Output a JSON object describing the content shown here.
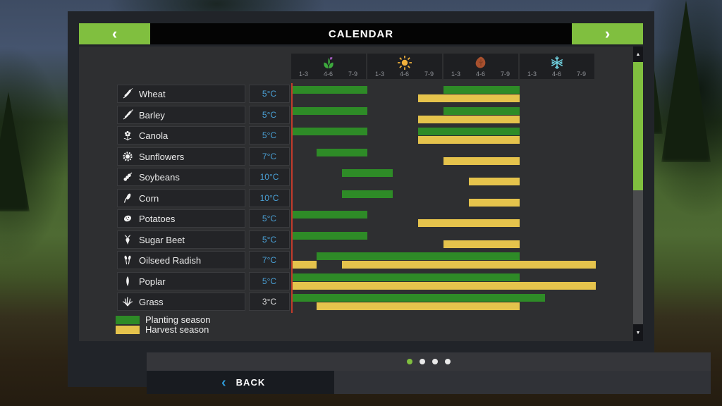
{
  "title": "CALENDAR",
  "nav": {
    "prev": "‹",
    "next": "›"
  },
  "seasons": [
    {
      "name": "spring",
      "icon": "spring-icon",
      "periods": [
        "1-3",
        "4-6",
        "7-9"
      ]
    },
    {
      "name": "summer",
      "icon": "summer-icon",
      "periods": [
        "1-3",
        "4-6",
        "7-9"
      ]
    },
    {
      "name": "autumn",
      "icon": "autumn-icon",
      "periods": [
        "1-3",
        "4-6",
        "7-9"
      ]
    },
    {
      "name": "winter",
      "icon": "winter-icon",
      "periods": [
        "1-3",
        "4-6",
        "7-9"
      ]
    }
  ],
  "crops": [
    {
      "name": "Wheat",
      "icon": "wheat-icon",
      "temp": "5°C",
      "temp_color": "#4aa0d5",
      "planting": [
        [
          0,
          3
        ],
        [
          6,
          9
        ]
      ],
      "harvest": [
        [
          5,
          9
        ]
      ]
    },
    {
      "name": "Barley",
      "icon": "barley-icon",
      "temp": "5°C",
      "temp_color": "#4aa0d5",
      "planting": [
        [
          0,
          3
        ],
        [
          6,
          9
        ]
      ],
      "harvest": [
        [
          5,
          9
        ]
      ]
    },
    {
      "name": "Canola",
      "icon": "canola-icon",
      "temp": "5°C",
      "temp_color": "#4aa0d5",
      "planting": [
        [
          0,
          3
        ],
        [
          5,
          9
        ]
      ],
      "harvest": [
        [
          5,
          9
        ]
      ]
    },
    {
      "name": "Sunflowers",
      "icon": "sunflowers-icon",
      "temp": "7°C",
      "temp_color": "#4aa0d5",
      "planting": [
        [
          1,
          3
        ]
      ],
      "harvest": [
        [
          6,
          9
        ]
      ]
    },
    {
      "name": "Soybeans",
      "icon": "soybeans-icon",
      "temp": "10°C",
      "temp_color": "#4aa0d5",
      "planting": [
        [
          2,
          4
        ]
      ],
      "harvest": [
        [
          7,
          9
        ]
      ]
    },
    {
      "name": "Corn",
      "icon": "corn-icon",
      "temp": "10°C",
      "temp_color": "#4aa0d5",
      "planting": [
        [
          2,
          4
        ]
      ],
      "harvest": [
        [
          7,
          9
        ]
      ]
    },
    {
      "name": "Potatoes",
      "icon": "potatoes-icon",
      "temp": "5°C",
      "temp_color": "#4aa0d5",
      "planting": [
        [
          0,
          3
        ]
      ],
      "harvest": [
        [
          5,
          9
        ]
      ]
    },
    {
      "name": "Sugar Beet",
      "icon": "sugar-beet-icon",
      "temp": "5°C",
      "temp_color": "#4aa0d5",
      "planting": [
        [
          0,
          3
        ]
      ],
      "harvest": [
        [
          6,
          9
        ]
      ]
    },
    {
      "name": "Oilseed Radish",
      "icon": "oilseed-radish-icon",
      "temp": "7°C",
      "temp_color": "#4aa0d5",
      "planting": [
        [
          1,
          9
        ]
      ],
      "harvest": [
        [
          0,
          1
        ],
        [
          2,
          12
        ]
      ]
    },
    {
      "name": "Poplar",
      "icon": "poplar-icon",
      "temp": "5°C",
      "temp_color": "#4aa0d5",
      "planting": [
        [
          0,
          9
        ]
      ],
      "harvest": [
        [
          0,
          12
        ]
      ]
    },
    {
      "name": "Grass",
      "icon": "grass-icon",
      "temp": "3°C",
      "temp_color": "#dedede",
      "planting": [
        [
          0,
          10
        ]
      ],
      "harvest": [
        [
          1,
          9
        ]
      ]
    }
  ],
  "legend": [
    {
      "label": "Planting season",
      "color": "#2e8b27"
    },
    {
      "label": "Harvest season",
      "color": "#e5c34c"
    }
  ],
  "pagination": {
    "count": 4,
    "active": 0
  },
  "back": {
    "chevron": "‹",
    "label": "BACK"
  },
  "colors": {
    "planting": "#2e8b27",
    "harvest": "#e5c34c",
    "accent_green": "#80bf3f",
    "temp_blue": "#4aa0d5",
    "current_day_line": "#c23b2b"
  },
  "chart_data": {
    "type": "gantt",
    "title": "CALENDAR",
    "x_axis": {
      "seasons": [
        "spring",
        "summer",
        "autumn",
        "winter"
      ],
      "periods_per_season": [
        "1-3",
        "4-6",
        "7-9"
      ],
      "total_columns": 12
    },
    "note": "planting/harvest ranges in crops[] are [startColumn, endColumn) over the 12 period columns"
  }
}
